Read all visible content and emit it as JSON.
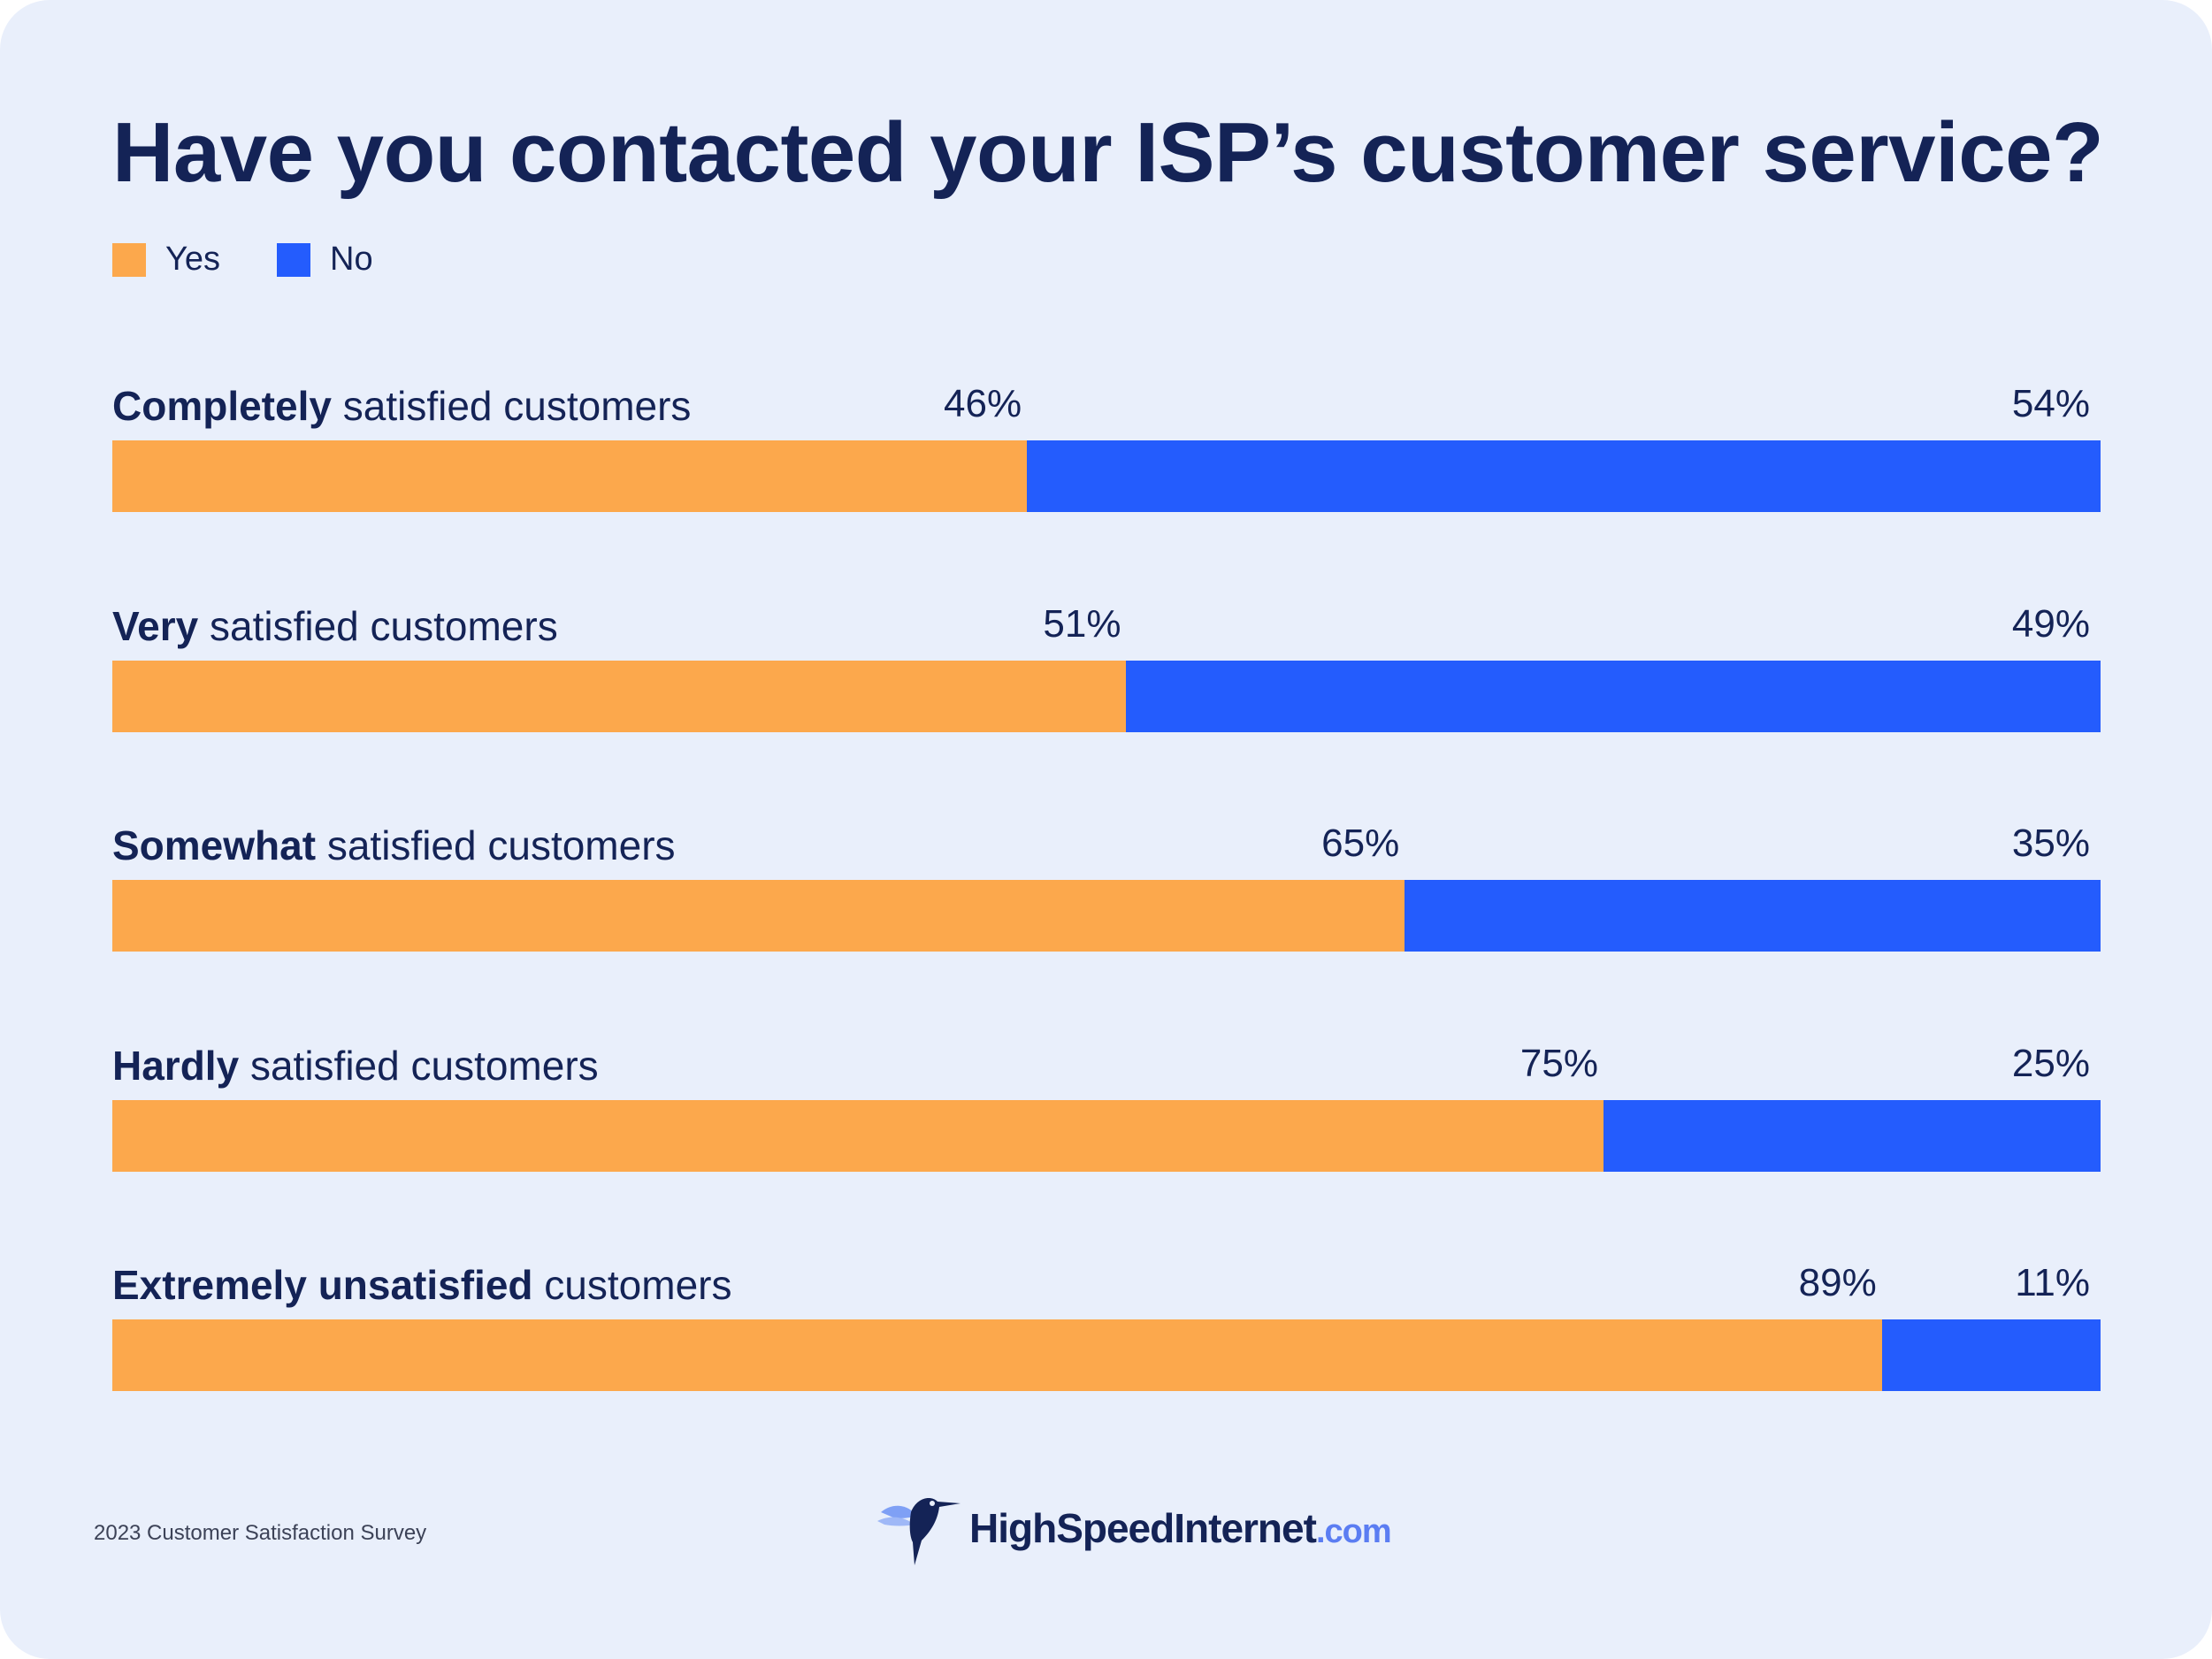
{
  "title": "Have you contacted your ISP’s customer service?",
  "legend": [
    {
      "label": "Yes",
      "color": "#fca84c"
    },
    {
      "label": "No",
      "color": "#245cfd"
    }
  ],
  "footer": {
    "note": "2023 Customer Satisfaction Survey",
    "logo_main": "HighSpeedInternet",
    "logo_suffix": ".com"
  },
  "chart_data": {
    "type": "bar",
    "orientation": "horizontal",
    "stacked": true,
    "title": "Have you contacted your ISP’s customer service?",
    "categories": [
      "Completely satisfied customers",
      "Very satisfied customers",
      "Somewhat satisfied customers",
      "Hardly satisfied customers",
      "Extremely unsatisfied customers"
    ],
    "category_labels": [
      {
        "bold": "Completely",
        "rest": " satisfied customers"
      },
      {
        "bold": "Very",
        "rest": " satisfied customers"
      },
      {
        "bold": "Somewhat",
        "rest": " satisfied customers"
      },
      {
        "bold": "Hardly",
        "rest": " satisfied customers"
      },
      {
        "bold": "Extremely unsatisfied",
        "rest": " customers"
      }
    ],
    "series": [
      {
        "name": "Yes",
        "color": "#fca84c",
        "values": [
          46,
          51,
          65,
          75,
          89
        ],
        "labels": [
          "46%",
          "51%",
          "65%",
          "75%",
          "89%"
        ]
      },
      {
        "name": "No",
        "color": "#245cfd",
        "values": [
          54,
          49,
          35,
          25,
          11
        ],
        "labels": [
          "54%",
          "49%",
          "35%",
          "25%",
          "11%"
        ]
      }
    ],
    "xlim": [
      0,
      100
    ],
    "grid": false,
    "legend_position": "top-left"
  }
}
